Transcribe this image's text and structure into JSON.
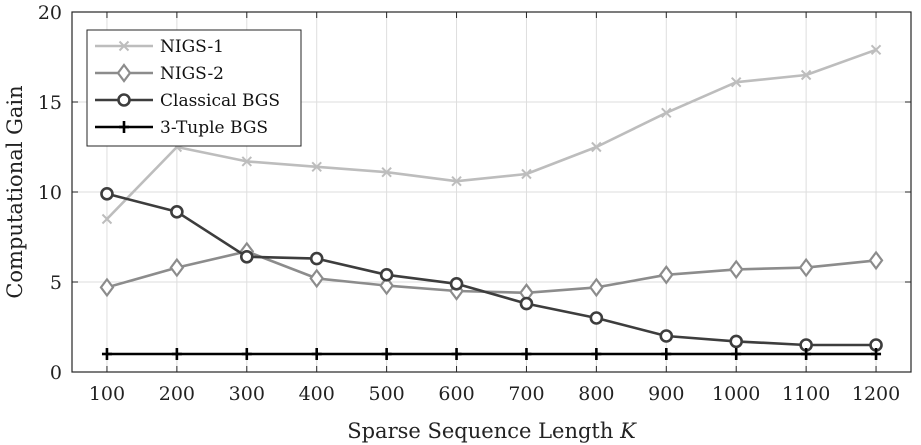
{
  "chart_data": {
    "type": "line",
    "xlabel": "Sparse Sequence Length ",
    "xlabel_var": "K",
    "ylabel": "Computational Gain",
    "x": [
      100,
      200,
      300,
      400,
      500,
      600,
      700,
      800,
      900,
      1000,
      1100,
      1200
    ],
    "xlim": [
      50,
      1250
    ],
    "ylim": [
      0,
      20
    ],
    "xticks": [
      "100",
      "200",
      "300",
      "400",
      "500",
      "600",
      "700",
      "800",
      "900",
      "1000",
      "1100",
      "1200"
    ],
    "yticks": [
      "0",
      "5",
      "10",
      "15",
      "20"
    ],
    "grid": true,
    "legend_position": "top-left",
    "series": [
      {
        "name": "NIGS-1",
        "marker": "x",
        "color": "#bdbdbd",
        "values": [
          8.5,
          12.5,
          11.7,
          11.4,
          11.1,
          10.6,
          11.0,
          12.5,
          14.4,
          16.1,
          16.5,
          17.9
        ]
      },
      {
        "name": "NIGS-2",
        "marker": "diamond",
        "color": "#8c8c8c",
        "values": [
          4.7,
          5.8,
          6.7,
          5.2,
          4.8,
          4.5,
          4.4,
          4.7,
          5.4,
          5.7,
          5.8,
          6.2
        ]
      },
      {
        "name": "Classical BGS",
        "marker": "circle",
        "color": "#3d3d3d",
        "values": [
          9.9,
          8.9,
          6.4,
          6.3,
          5.4,
          4.9,
          3.8,
          3.0,
          2.0,
          1.7,
          1.5,
          1.5
        ]
      },
      {
        "name": "3-Tuple BGS",
        "marker": "plus",
        "color": "#000000",
        "values": [
          1,
          1,
          1,
          1,
          1,
          1,
          1,
          1,
          1,
          1,
          1,
          1
        ]
      }
    ]
  }
}
